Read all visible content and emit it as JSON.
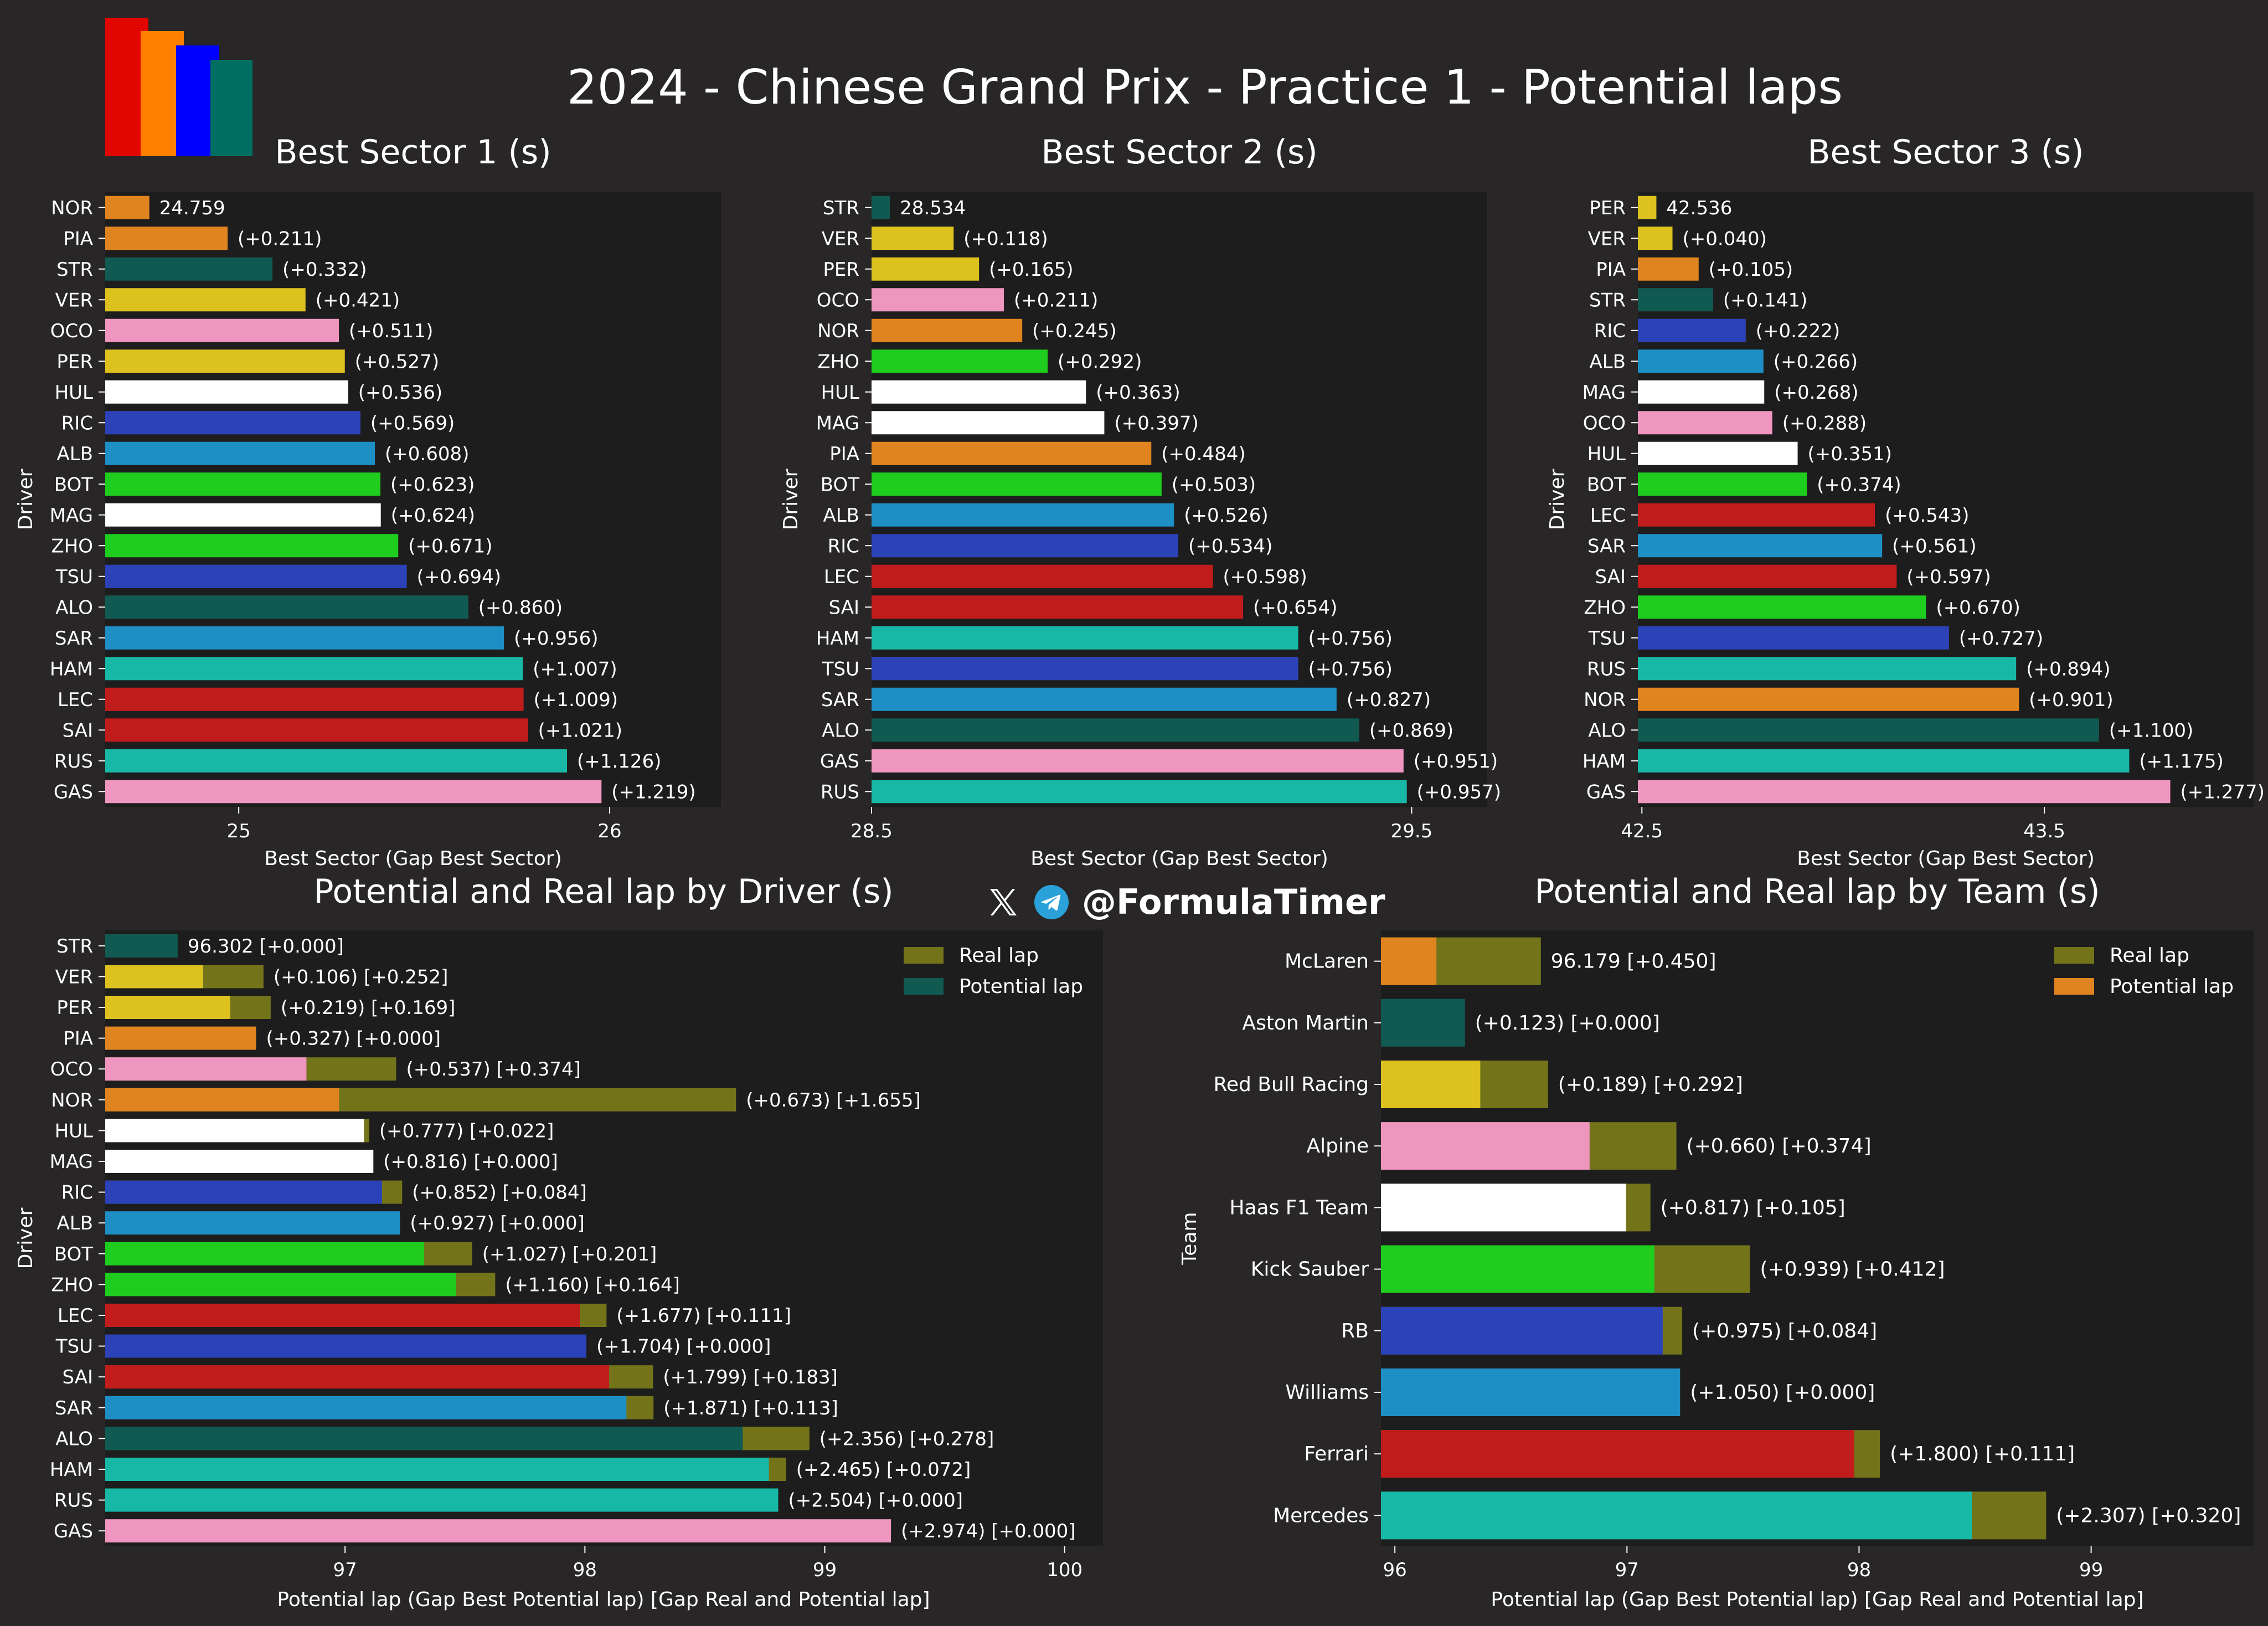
{
  "title": "2024 - Chinese Grand Prix - Practice 1 - Potential laps",
  "watermark": {
    "handle": "@FormulaTimer",
    "icons": [
      "x-icon",
      "telegram-icon"
    ]
  },
  "logo": {
    "colors": [
      "#e10600",
      "#ff8000",
      "#0000ff",
      "#006f62"
    ]
  },
  "colors": {
    "background": "#282626",
    "plot_bg": "#1e1d1d",
    "text": "#ffffff",
    "real_lap": "#73741a",
    "NOR": "#e0841f",
    "PIA": "#e0841f",
    "STR": "#105a52",
    "ALO": "#105a52",
    "VER": "#ddc11f",
    "PER": "#ddc11f",
    "OCO": "#ee95c0",
    "GAS": "#ee95c0",
    "HUL": "#ffffff",
    "MAG": "#ffffff",
    "RIC": "#2c42b8",
    "TSU": "#2c42b8",
    "ALB": "#1d8fc5",
    "SAR": "#1d8fc5",
    "BOT": "#1ecd1e",
    "ZHO": "#1ecd1e",
    "HAM": "#18b8a6",
    "RUS": "#18b8a6",
    "LEC": "#c01c1c",
    "SAI": "#c01c1c",
    "McLaren": "#e0841f",
    "Aston Martin": "#105a52",
    "Red Bull Racing": "#ddc11f",
    "Alpine": "#ee95c0",
    "Haas F1 Team": "#ffffff",
    "Kick Sauber": "#1ecd1e",
    "RB": "#2c42b8",
    "Williams": "#1d8fc5",
    "Ferrari": "#c01c1c",
    "Mercedes": "#18b8a6"
  },
  "chart_data": [
    {
      "id": "sector1",
      "type": "bar",
      "orientation": "horizontal",
      "title": "Best Sector 1 (s)",
      "xlabel": "Best Sector (Gap Best Sector)",
      "ylabel": "Driver",
      "xlim": [
        24.64,
        26.3
      ],
      "xticks": [
        "25",
        "26"
      ],
      "categories": [
        "NOR",
        "PIA",
        "STR",
        "VER",
        "OCO",
        "PER",
        "HUL",
        "RIC",
        "ALB",
        "BOT",
        "MAG",
        "ZHO",
        "TSU",
        "ALO",
        "SAR",
        "HAM",
        "LEC",
        "SAI",
        "RUS",
        "GAS"
      ],
      "values": [
        24.759,
        24.97,
        25.091,
        25.18,
        25.27,
        25.286,
        25.295,
        25.328,
        25.367,
        25.382,
        25.383,
        25.43,
        25.453,
        25.619,
        25.715,
        25.766,
        25.768,
        25.78,
        25.885,
        25.978
      ],
      "labels": [
        "24.759",
        "(+0.211)",
        "(+0.332)",
        "(+0.421)",
        "(+0.511)",
        "(+0.527)",
        "(+0.536)",
        "(+0.569)",
        "(+0.608)",
        "(+0.623)",
        "(+0.624)",
        "(+0.671)",
        "(+0.694)",
        "(+0.860)",
        "(+0.956)",
        "(+1.007)",
        "(+1.009)",
        "(+1.021)",
        "(+1.126)",
        "(+1.219)"
      ]
    },
    {
      "id": "sector2",
      "type": "bar",
      "orientation": "horizontal",
      "title": "Best Sector 2 (s)",
      "xlabel": "Best Sector (Gap Best Sector)",
      "ylabel": "Driver",
      "xlim": [
        28.5,
        29.64
      ],
      "xticks": [
        "28.5",
        "29.5"
      ],
      "categories": [
        "STR",
        "VER",
        "PER",
        "OCO",
        "NOR",
        "ZHO",
        "HUL",
        "MAG",
        "PIA",
        "BOT",
        "ALB",
        "RIC",
        "LEC",
        "SAI",
        "HAM",
        "TSU",
        "SAR",
        "ALO",
        "GAS",
        "RUS"
      ],
      "values": [
        28.534,
        28.652,
        28.699,
        28.745,
        28.779,
        28.826,
        28.897,
        28.931,
        29.018,
        29.037,
        29.06,
        29.068,
        29.132,
        29.188,
        29.29,
        29.29,
        29.361,
        29.403,
        29.485,
        29.491
      ],
      "labels": [
        "28.534",
        "(+0.118)",
        "(+0.165)",
        "(+0.211)",
        "(+0.245)",
        "(+0.292)",
        "(+0.363)",
        "(+0.397)",
        "(+0.484)",
        "(+0.503)",
        "(+0.526)",
        "(+0.534)",
        "(+0.598)",
        "(+0.654)",
        "(+0.756)",
        "(+0.756)",
        "(+0.827)",
        "(+0.869)",
        "(+0.951)",
        "(+0.957)"
      ]
    },
    {
      "id": "sector3",
      "type": "bar",
      "orientation": "horizontal",
      "title": "Best Sector 3 (s)",
      "xlabel": "Best Sector (Gap Best Sector)",
      "ylabel": "Driver",
      "xlim": [
        42.49,
        44.02
      ],
      "xticks": [
        "42.5",
        "43.5"
      ],
      "categories": [
        "PER",
        "VER",
        "PIA",
        "STR",
        "RIC",
        "ALB",
        "MAG",
        "OCO",
        "HUL",
        "BOT",
        "LEC",
        "SAR",
        "SAI",
        "ZHO",
        "TSU",
        "RUS",
        "NOR",
        "ALO",
        "HAM",
        "GAS"
      ],
      "values": [
        42.536,
        42.576,
        42.641,
        42.677,
        42.758,
        42.802,
        42.804,
        42.824,
        42.887,
        42.91,
        43.079,
        43.097,
        43.133,
        43.206,
        43.263,
        43.43,
        43.437,
        43.636,
        43.711,
        43.813
      ],
      "labels": [
        "42.536",
        "(+0.040)",
        "(+0.105)",
        "(+0.141)",
        "(+0.222)",
        "(+0.266)",
        "(+0.268)",
        "(+0.288)",
        "(+0.351)",
        "(+0.374)",
        "(+0.543)",
        "(+0.561)",
        "(+0.597)",
        "(+0.670)",
        "(+0.727)",
        "(+0.894)",
        "(+0.901)",
        "(+1.100)",
        "(+1.175)",
        "(+1.277)"
      ]
    },
    {
      "id": "driver_laps",
      "type": "bar",
      "orientation": "horizontal",
      "stacked": "overlay",
      "title": "Potential and Real lap by Driver (s)",
      "xlabel": "Potential lap (Gap Best Potential lap) [Gap Real and Potential lap]",
      "ylabel": "Driver",
      "xlim": [
        96.0,
        100.16
      ],
      "xticks": [
        "97",
        "98",
        "99",
        "100"
      ],
      "legend": {
        "position": "top-right",
        "entries": [
          "Real lap",
          "Potential lap"
        ],
        "swatches": [
          "#73741a",
          "#105a52"
        ]
      },
      "categories": [
        "STR",
        "VER",
        "PER",
        "PIA",
        "OCO",
        "NOR",
        "HUL",
        "MAG",
        "RIC",
        "ALB",
        "BOT",
        "ZHO",
        "LEC",
        "TSU",
        "SAI",
        "SAR",
        "ALO",
        "HAM",
        "RUS",
        "GAS"
      ],
      "series": [
        {
          "name": "Potential lap",
          "values": [
            96.302,
            96.408,
            96.521,
            96.629,
            96.839,
            96.975,
            97.079,
            97.118,
            97.154,
            97.229,
            97.329,
            97.462,
            97.979,
            98.006,
            98.101,
            98.173,
            98.658,
            98.767,
            98.806,
            99.276
          ]
        },
        {
          "name": "Real lap",
          "values": [
            96.302,
            96.66,
            96.69,
            96.629,
            97.213,
            98.63,
            97.101,
            97.118,
            97.238,
            97.229,
            97.53,
            97.626,
            98.09,
            98.006,
            98.284,
            98.286,
            98.936,
            98.839,
            98.806,
            99.276
          ]
        }
      ],
      "labels": [
        "96.302 [+0.000]",
        "(+0.106) [+0.252]",
        "(+0.219) [+0.169]",
        "(+0.327) [+0.000]",
        "(+0.537) [+0.374]",
        "(+0.673) [+1.655]",
        "(+0.777) [+0.022]",
        "(+0.816) [+0.000]",
        "(+0.852) [+0.084]",
        "(+0.927) [+0.000]",
        "(+1.027) [+0.201]",
        "(+1.160) [+0.164]",
        "(+1.677) [+0.111]",
        "(+1.704) [+0.000]",
        "(+1.799) [+0.183]",
        "(+1.871) [+0.113]",
        "(+2.356) [+0.278]",
        "(+2.465) [+0.072]",
        "(+2.504) [+0.000]",
        "(+2.974) [+0.000]"
      ]
    },
    {
      "id": "team_laps",
      "type": "bar",
      "orientation": "horizontal",
      "stacked": "overlay",
      "title": "Potential and Real lap by Team (s)",
      "xlabel": "Potential lap (Gap Best Potential lap) [Gap Real and Potential lap]",
      "ylabel": "Team",
      "xlim": [
        95.94,
        99.7
      ],
      "xticks": [
        "96",
        "97",
        "98",
        "99"
      ],
      "legend": {
        "position": "top-right",
        "entries": [
          "Real lap",
          "Potential lap"
        ],
        "swatches": [
          "#73741a",
          "#e0841f"
        ]
      },
      "categories": [
        "McLaren",
        "Aston Martin",
        "Red Bull Racing",
        "Alpine",
        "Haas F1 Team",
        "Kick Sauber",
        "RB",
        "Williams",
        "Ferrari",
        "Mercedes"
      ],
      "series": [
        {
          "name": "Potential lap",
          "values": [
            96.179,
            96.302,
            96.368,
            96.839,
            96.996,
            97.118,
            97.154,
            97.229,
            97.979,
            98.486
          ]
        },
        {
          "name": "Real lap",
          "values": [
            96.629,
            96.302,
            96.66,
            97.213,
            97.101,
            97.53,
            97.238,
            97.229,
            98.09,
            98.806
          ]
        }
      ],
      "labels": [
        "96.179 [+0.450]",
        "(+0.123) [+0.000]",
        "(+0.189) [+0.292]",
        "(+0.660) [+0.374]",
        "(+0.817) [+0.105]",
        "(+0.939) [+0.412]",
        "(+0.975) [+0.084]",
        "(+1.050) [+0.000]",
        "(+1.800) [+0.111]",
        "(+2.307) [+0.320]"
      ]
    }
  ]
}
